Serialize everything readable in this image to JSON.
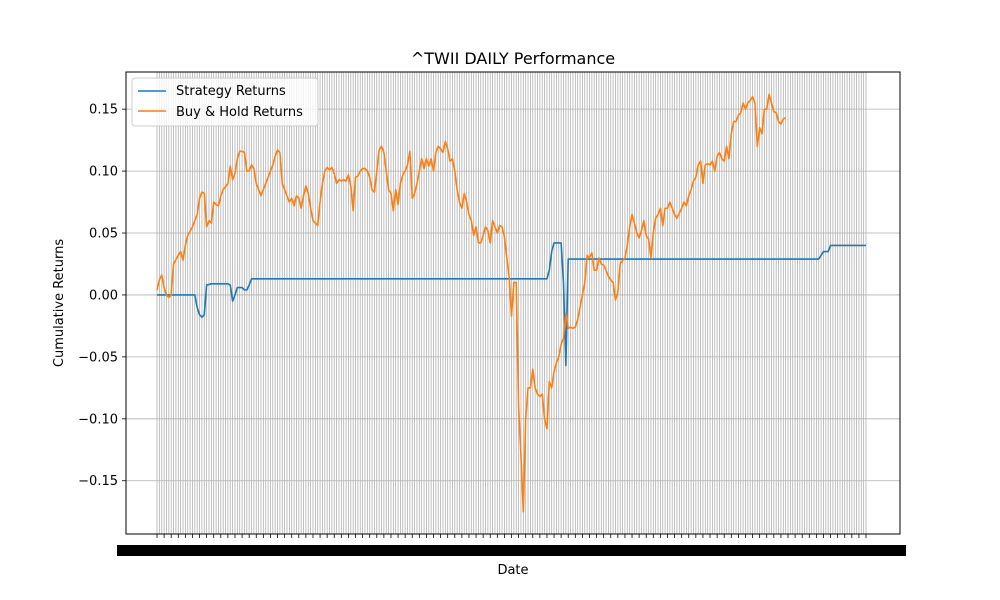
{
  "chart_data": {
    "type": "line",
    "title": "^TWII DAILY Performance",
    "xlabel": "Date",
    "ylabel": "Cumulative Returns",
    "ylim": [
      -0.193,
      0.18
    ],
    "yticks": [
      0.15,
      0.1,
      0.05,
      0.0,
      -0.05,
      -0.1,
      -0.15
    ],
    "ytick_labels": [
      "0.15",
      "0.10",
      "0.05",
      "0.00",
      "−0.05",
      "−0.10",
      "−0.15"
    ],
    "grid": true,
    "legend_position": "top-left",
    "x_index_range": [
      0,
      300
    ],
    "series": [
      {
        "name": "Strategy Returns",
        "color": "#1f77b4",
        "points": [
          [
            0,
            0
          ],
          [
            10,
            0
          ],
          [
            13,
            0
          ],
          [
            16,
            0
          ],
          [
            17,
            -0.01
          ],
          [
            18,
            -0.016
          ],
          [
            19,
            -0.018
          ],
          [
            20,
            -0.016
          ],
          [
            21,
            0.008
          ],
          [
            23,
            0.009
          ],
          [
            30,
            0.009
          ],
          [
            31,
            0.008
          ],
          [
            32,
            -0.005
          ],
          [
            33,
            0.0
          ],
          [
            34,
            0.006
          ],
          [
            36,
            0.006
          ],
          [
            37,
            0.004
          ],
          [
            38,
            0.004
          ],
          [
            39,
            0.008
          ],
          [
            40,
            0.013
          ],
          [
            165,
            0.013
          ],
          [
            166,
            0.02
          ],
          [
            167,
            0.035
          ],
          [
            168,
            0.042
          ],
          [
            171,
            0.042
          ],
          [
            172,
            0.01
          ],
          [
            173,
            -0.057
          ],
          [
            174,
            0.029
          ],
          [
            175,
            0.029
          ],
          [
            280,
            0.029
          ],
          [
            282,
            0.035
          ],
          [
            284,
            0.035
          ],
          [
            285,
            0.04
          ],
          [
            300,
            0.04
          ]
        ]
      },
      {
        "name": "Buy & Hold Returns",
        "color": "#ff7f0e",
        "points": [
          [
            0,
            0.004
          ],
          [
            1,
            0.012
          ],
          [
            2,
            0.016
          ],
          [
            3,
            0.006
          ],
          [
            4,
            0.0
          ],
          [
            5,
            -0.002
          ],
          [
            6,
            0.0
          ],
          [
            7,
            0.025
          ],
          [
            9,
            0.032
          ],
          [
            10,
            0.035
          ],
          [
            11,
            0.028
          ],
          [
            12,
            0.04
          ],
          [
            13,
            0.048
          ],
          [
            15,
            0.055
          ],
          [
            17,
            0.065
          ],
          [
            18,
            0.078
          ],
          [
            19,
            0.083
          ],
          [
            20,
            0.082
          ],
          [
            21,
            0.055
          ],
          [
            22,
            0.06
          ],
          [
            23,
            0.058
          ],
          [
            24,
            0.075
          ],
          [
            25,
            0.073
          ],
          [
            26,
            0.072
          ],
          [
            27,
            0.08
          ],
          [
            28,
            0.085
          ],
          [
            30,
            0.09
          ],
          [
            31,
            0.104
          ],
          [
            32,
            0.093
          ],
          [
            33,
            0.098
          ],
          [
            34,
            0.11
          ],
          [
            35,
            0.116
          ],
          [
            36,
            0.116
          ],
          [
            37,
            0.115
          ],
          [
            38,
            0.1
          ],
          [
            39,
            0.1
          ],
          [
            40,
            0.105
          ],
          [
            41,
            0.102
          ],
          [
            42,
            0.09
          ],
          [
            43,
            0.085
          ],
          [
            44,
            0.08
          ],
          [
            45,
            0.085
          ],
          [
            46,
            0.09
          ],
          [
            47,
            0.095
          ],
          [
            48,
            0.1
          ],
          [
            49,
            0.105
          ],
          [
            50,
            0.112
          ],
          [
            51,
            0.117
          ],
          [
            52,
            0.115
          ],
          [
            53,
            0.09
          ],
          [
            54,
            0.085
          ],
          [
            55,
            0.08
          ],
          [
            56,
            0.075
          ],
          [
            57,
            0.078
          ],
          [
            58,
            0.072
          ],
          [
            59,
            0.08
          ],
          [
            60,
            0.078
          ],
          [
            61,
            0.07
          ],
          [
            62,
            0.08
          ],
          [
            63,
            0.088
          ],
          [
            64,
            0.082
          ],
          [
            65,
            0.07
          ],
          [
            66,
            0.06
          ],
          [
            67,
            0.058
          ],
          [
            68,
            0.056
          ],
          [
            69,
            0.075
          ],
          [
            70,
            0.09
          ],
          [
            71,
            0.1
          ],
          [
            72,
            0.103
          ],
          [
            73,
            0.101
          ],
          [
            74,
            0.103
          ],
          [
            75,
            0.098
          ],
          [
            76,
            0.09
          ],
          [
            77,
            0.093
          ],
          [
            78,
            0.092
          ],
          [
            79,
            0.093
          ],
          [
            80,
            0.092
          ],
          [
            81,
            0.097
          ],
          [
            82,
            0.088
          ],
          [
            83,
            0.068
          ],
          [
            84,
            0.095
          ],
          [
            85,
            0.096
          ],
          [
            86,
            0.1
          ],
          [
            87,
            0.102
          ],
          [
            88,
            0.102
          ],
          [
            89,
            0.1
          ],
          [
            90,
            0.095
          ],
          [
            91,
            0.085
          ],
          [
            92,
            0.083
          ],
          [
            93,
            0.1
          ],
          [
            94,
            0.117
          ],
          [
            95,
            0.12
          ],
          [
            96,
            0.115
          ],
          [
            97,
            0.1
          ],
          [
            98,
            0.085
          ],
          [
            99,
            0.082
          ],
          [
            100,
            0.068
          ],
          [
            101,
            0.085
          ],
          [
            102,
            0.073
          ],
          [
            103,
            0.09
          ],
          [
            104,
            0.097
          ],
          [
            105,
            0.1
          ],
          [
            106,
            0.105
          ],
          [
            107,
            0.116
          ],
          [
            108,
            0.078
          ],
          [
            109,
            0.082
          ],
          [
            110,
            0.09
          ],
          [
            111,
            0.1
          ],
          [
            112,
            0.11
          ],
          [
            113,
            0.102
          ],
          [
            114,
            0.11
          ],
          [
            115,
            0.104
          ],
          [
            116,
            0.11
          ],
          [
            117,
            0.1
          ],
          [
            118,
            0.115
          ],
          [
            119,
            0.12
          ],
          [
            120,
            0.118
          ],
          [
            121,
            0.115
          ],
          [
            122,
            0.124
          ],
          [
            123,
            0.118
          ],
          [
            124,
            0.108
          ],
          [
            125,
            0.11
          ],
          [
            126,
            0.1
          ],
          [
            127,
            0.085
          ],
          [
            128,
            0.075
          ],
          [
            129,
            0.07
          ],
          [
            130,
            0.082
          ],
          [
            131,
            0.075
          ],
          [
            132,
            0.065
          ],
          [
            133,
            0.06
          ],
          [
            134,
            0.048
          ],
          [
            135,
            0.055
          ],
          [
            136,
            0.042
          ],
          [
            137,
            0.042
          ],
          [
            138,
            0.048
          ],
          [
            139,
            0.055
          ],
          [
            140,
            0.052
          ],
          [
            141,
            0.042
          ],
          [
            142,
            0.06
          ],
          [
            143,
            0.055
          ],
          [
            144,
            0.05
          ],
          [
            145,
            0.056
          ],
          [
            146,
            0.055
          ],
          [
            147,
            0.047
          ],
          [
            148,
            0.03
          ],
          [
            149,
            0.015
          ],
          [
            150,
            -0.017
          ],
          [
            151,
            0.01
          ],
          [
            152,
            0.01
          ],
          [
            153,
            -0.09
          ],
          [
            154,
            -0.13
          ],
          [
            155,
            -0.175
          ],
          [
            156,
            -0.1
          ],
          [
            157,
            -0.075
          ],
          [
            158,
            -0.075
          ],
          [
            159,
            -0.06
          ],
          [
            160,
            -0.075
          ],
          [
            161,
            -0.08
          ],
          [
            162,
            -0.082
          ],
          [
            163,
            -0.08
          ],
          [
            164,
            -0.1
          ],
          [
            165,
            -0.108
          ],
          [
            166,
            -0.07
          ],
          [
            167,
            -0.075
          ],
          [
            168,
            -0.062
          ],
          [
            169,
            -0.055
          ],
          [
            170,
            -0.05
          ],
          [
            171,
            -0.04
          ],
          [
            172,
            -0.035
          ],
          [
            173,
            -0.015
          ],
          [
            174,
            -0.027
          ],
          [
            175,
            -0.026
          ],
          [
            176,
            -0.027
          ],
          [
            177,
            -0.026
          ],
          [
            178,
            -0.02
          ],
          [
            179,
            -0.01
          ],
          [
            180,
            0.0
          ],
          [
            181,
            0.01
          ],
          [
            182,
            0.032
          ],
          [
            183,
            0.03
          ],
          [
            184,
            0.034
          ],
          [
            185,
            0.02
          ],
          [
            186,
            0.02
          ],
          [
            187,
            0.03
          ],
          [
            188,
            0.025
          ],
          [
            189,
            0.024
          ],
          [
            190,
            0.02
          ],
          [
            191,
            0.015
          ],
          [
            192,
            0.012
          ],
          [
            193,
            0.01
          ],
          [
            194,
            -0.004
          ],
          [
            195,
            0.002
          ],
          [
            196,
            0.025
          ],
          [
            197,
            0.028
          ],
          [
            198,
            0.03
          ],
          [
            199,
            0.04
          ],
          [
            200,
            0.055
          ],
          [
            201,
            0.065
          ],
          [
            202,
            0.058
          ],
          [
            203,
            0.05
          ],
          [
            204,
            0.046
          ],
          [
            205,
            0.052
          ],
          [
            206,
            0.06
          ],
          [
            207,
            0.048
          ],
          [
            208,
            0.045
          ],
          [
            209,
            0.03
          ],
          [
            210,
            0.05
          ],
          [
            211,
            0.062
          ],
          [
            212,
            0.065
          ],
          [
            213,
            0.07
          ],
          [
            214,
            0.056
          ],
          [
            215,
            0.07
          ],
          [
            216,
            0.07
          ],
          [
            217,
            0.075
          ],
          [
            218,
            0.07
          ],
          [
            219,
            0.065
          ],
          [
            220,
            0.062
          ],
          [
            221,
            0.066
          ],
          [
            222,
            0.07
          ],
          [
            223,
            0.075
          ],
          [
            224,
            0.072
          ],
          [
            225,
            0.08
          ],
          [
            226,
            0.085
          ],
          [
            227,
            0.092
          ],
          [
            228,
            0.095
          ],
          [
            229,
            0.105
          ],
          [
            230,
            0.108
          ],
          [
            231,
            0.09
          ],
          [
            232,
            0.105
          ],
          [
            233,
            0.106
          ],
          [
            234,
            0.105
          ],
          [
            235,
            0.108
          ],
          [
            236,
            0.1
          ],
          [
            237,
            0.112
          ],
          [
            238,
            0.115
          ],
          [
            239,
            0.11
          ],
          [
            240,
            0.108
          ],
          [
            241,
            0.12
          ],
          [
            242,
            0.11
          ],
          [
            243,
            0.13
          ],
          [
            244,
            0.14
          ],
          [
            245,
            0.14
          ],
          [
            246,
            0.145
          ],
          [
            247,
            0.147
          ],
          [
            248,
            0.155
          ],
          [
            249,
            0.15
          ],
          [
            250,
            0.155
          ],
          [
            251,
            0.157
          ],
          [
            252,
            0.16
          ],
          [
            253,
            0.155
          ],
          [
            254,
            0.12
          ],
          [
            255,
            0.135
          ],
          [
            256,
            0.13
          ],
          [
            257,
            0.15
          ],
          [
            258,
            0.15
          ],
          [
            259,
            0.162
          ],
          [
            260,
            0.155
          ],
          [
            261,
            0.148
          ],
          [
            262,
            0.147
          ],
          [
            263,
            0.14
          ],
          [
            264,
            0.138
          ],
          [
            265,
            0.142
          ],
          [
            266,
            0.143
          ]
        ]
      }
    ]
  }
}
